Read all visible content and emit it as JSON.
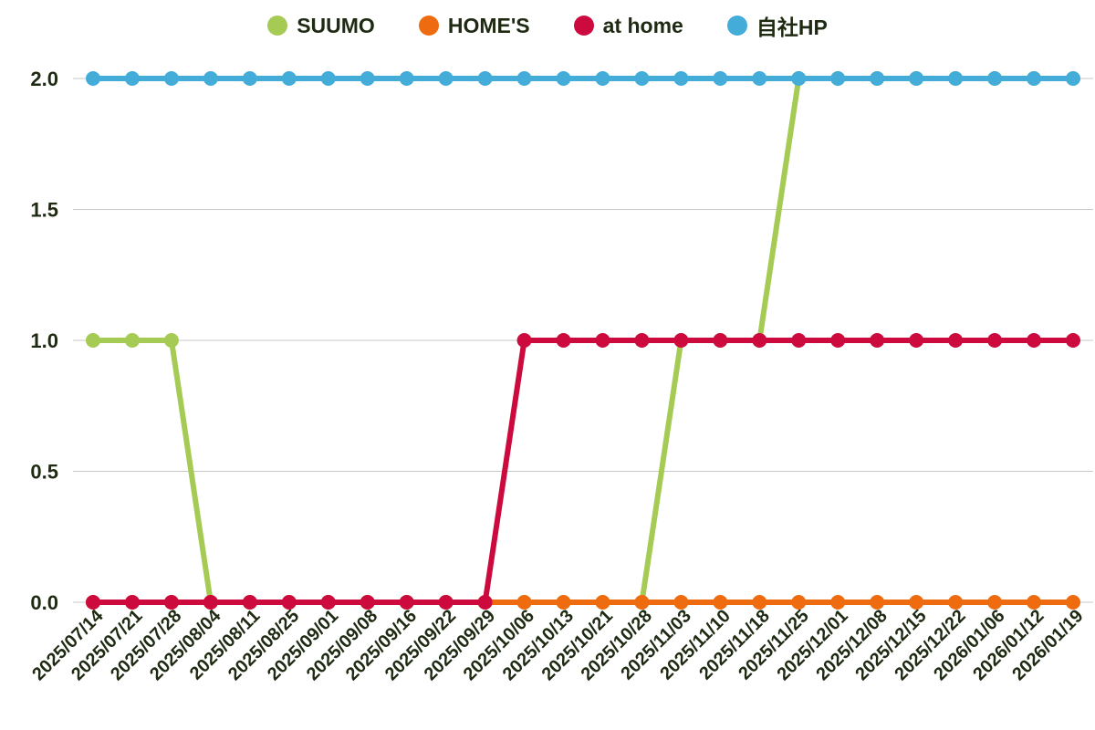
{
  "chart_data": {
    "type": "line",
    "categories": [
      "2025/07/14",
      "2025/07/21",
      "2025/07/28",
      "2025/08/04",
      "2025/08/11",
      "2025/08/25",
      "2025/09/01",
      "2025/09/08",
      "2025/09/16",
      "2025/09/22",
      "2025/09/29",
      "2025/10/06",
      "2025/10/13",
      "2025/10/21",
      "2025/10/28",
      "2025/11/03",
      "2025/11/10",
      "2025/11/18",
      "2025/11/25",
      "2025/12/01",
      "2025/12/08",
      "2025/12/15",
      "2025/12/22",
      "2026/01/06",
      "2026/01/12",
      "2026/01/19"
    ],
    "yticks": [
      "0.0",
      "0.5",
      "1.0",
      "1.5",
      "2.0"
    ],
    "ylim": [
      0,
      2
    ],
    "grid": true,
    "legend_position": "top-center",
    "series": [
      {
        "name": "SUUMO",
        "color": "#a5cb54",
        "values": [
          1,
          1,
          1,
          0,
          0,
          0,
          0,
          0,
          0,
          0,
          0,
          0,
          0,
          0,
          0,
          1,
          1,
          1,
          2,
          2,
          2,
          2,
          2,
          2,
          2,
          2
        ]
      },
      {
        "name": "HOME'S",
        "color": "#ee6c0f",
        "values": [
          0,
          0,
          0,
          0,
          0,
          0,
          0,
          0,
          0,
          0,
          0,
          0,
          0,
          0,
          0,
          0,
          0,
          0,
          0,
          0,
          0,
          0,
          0,
          0,
          0,
          0
        ]
      },
      {
        "name": "at home",
        "color": "#cc0a3e",
        "values": [
          0,
          0,
          0,
          0,
          0,
          0,
          0,
          0,
          0,
          0,
          0,
          1,
          1,
          1,
          1,
          1,
          1,
          1,
          1,
          1,
          1,
          1,
          1,
          1,
          1,
          1
        ]
      },
      {
        "name": "自社HP",
        "color": "#44acd8",
        "values": [
          2,
          2,
          2,
          2,
          2,
          2,
          2,
          2,
          2,
          2,
          2,
          2,
          2,
          2,
          2,
          2,
          2,
          2,
          2,
          2,
          2,
          2,
          2,
          2,
          2,
          2
        ]
      }
    ]
  }
}
